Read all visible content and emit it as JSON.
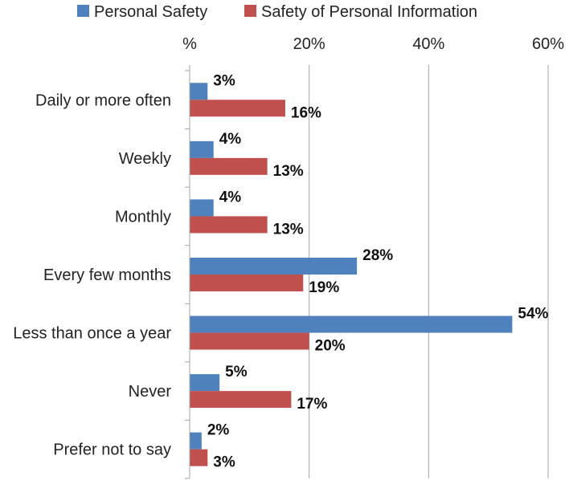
{
  "chart_data": {
    "type": "bar",
    "orientation": "horizontal",
    "categories": [
      "Daily or more often",
      "Weekly",
      "Monthly",
      "Every few months",
      "Less than once a year",
      "Never",
      "Prefer not to say"
    ],
    "series": [
      {
        "name": "Personal Safety",
        "color": "#4F81BD",
        "values": [
          3,
          4,
          4,
          28,
          54,
          5,
          2
        ]
      },
      {
        "name": "Safety of Personal Information",
        "color": "#C0504D",
        "values": [
          16,
          13,
          13,
          19,
          20,
          17,
          3
        ]
      }
    ],
    "xlim": [
      0,
      60
    ],
    "x_ticks": [
      0,
      20,
      40,
      60
    ],
    "x_tick_labels": [
      "%",
      "20%",
      "40%",
      "60%"
    ],
    "x_axis_position": "top",
    "data_label_suffix": "%",
    "grid": true,
    "legend_placement": "top"
  }
}
